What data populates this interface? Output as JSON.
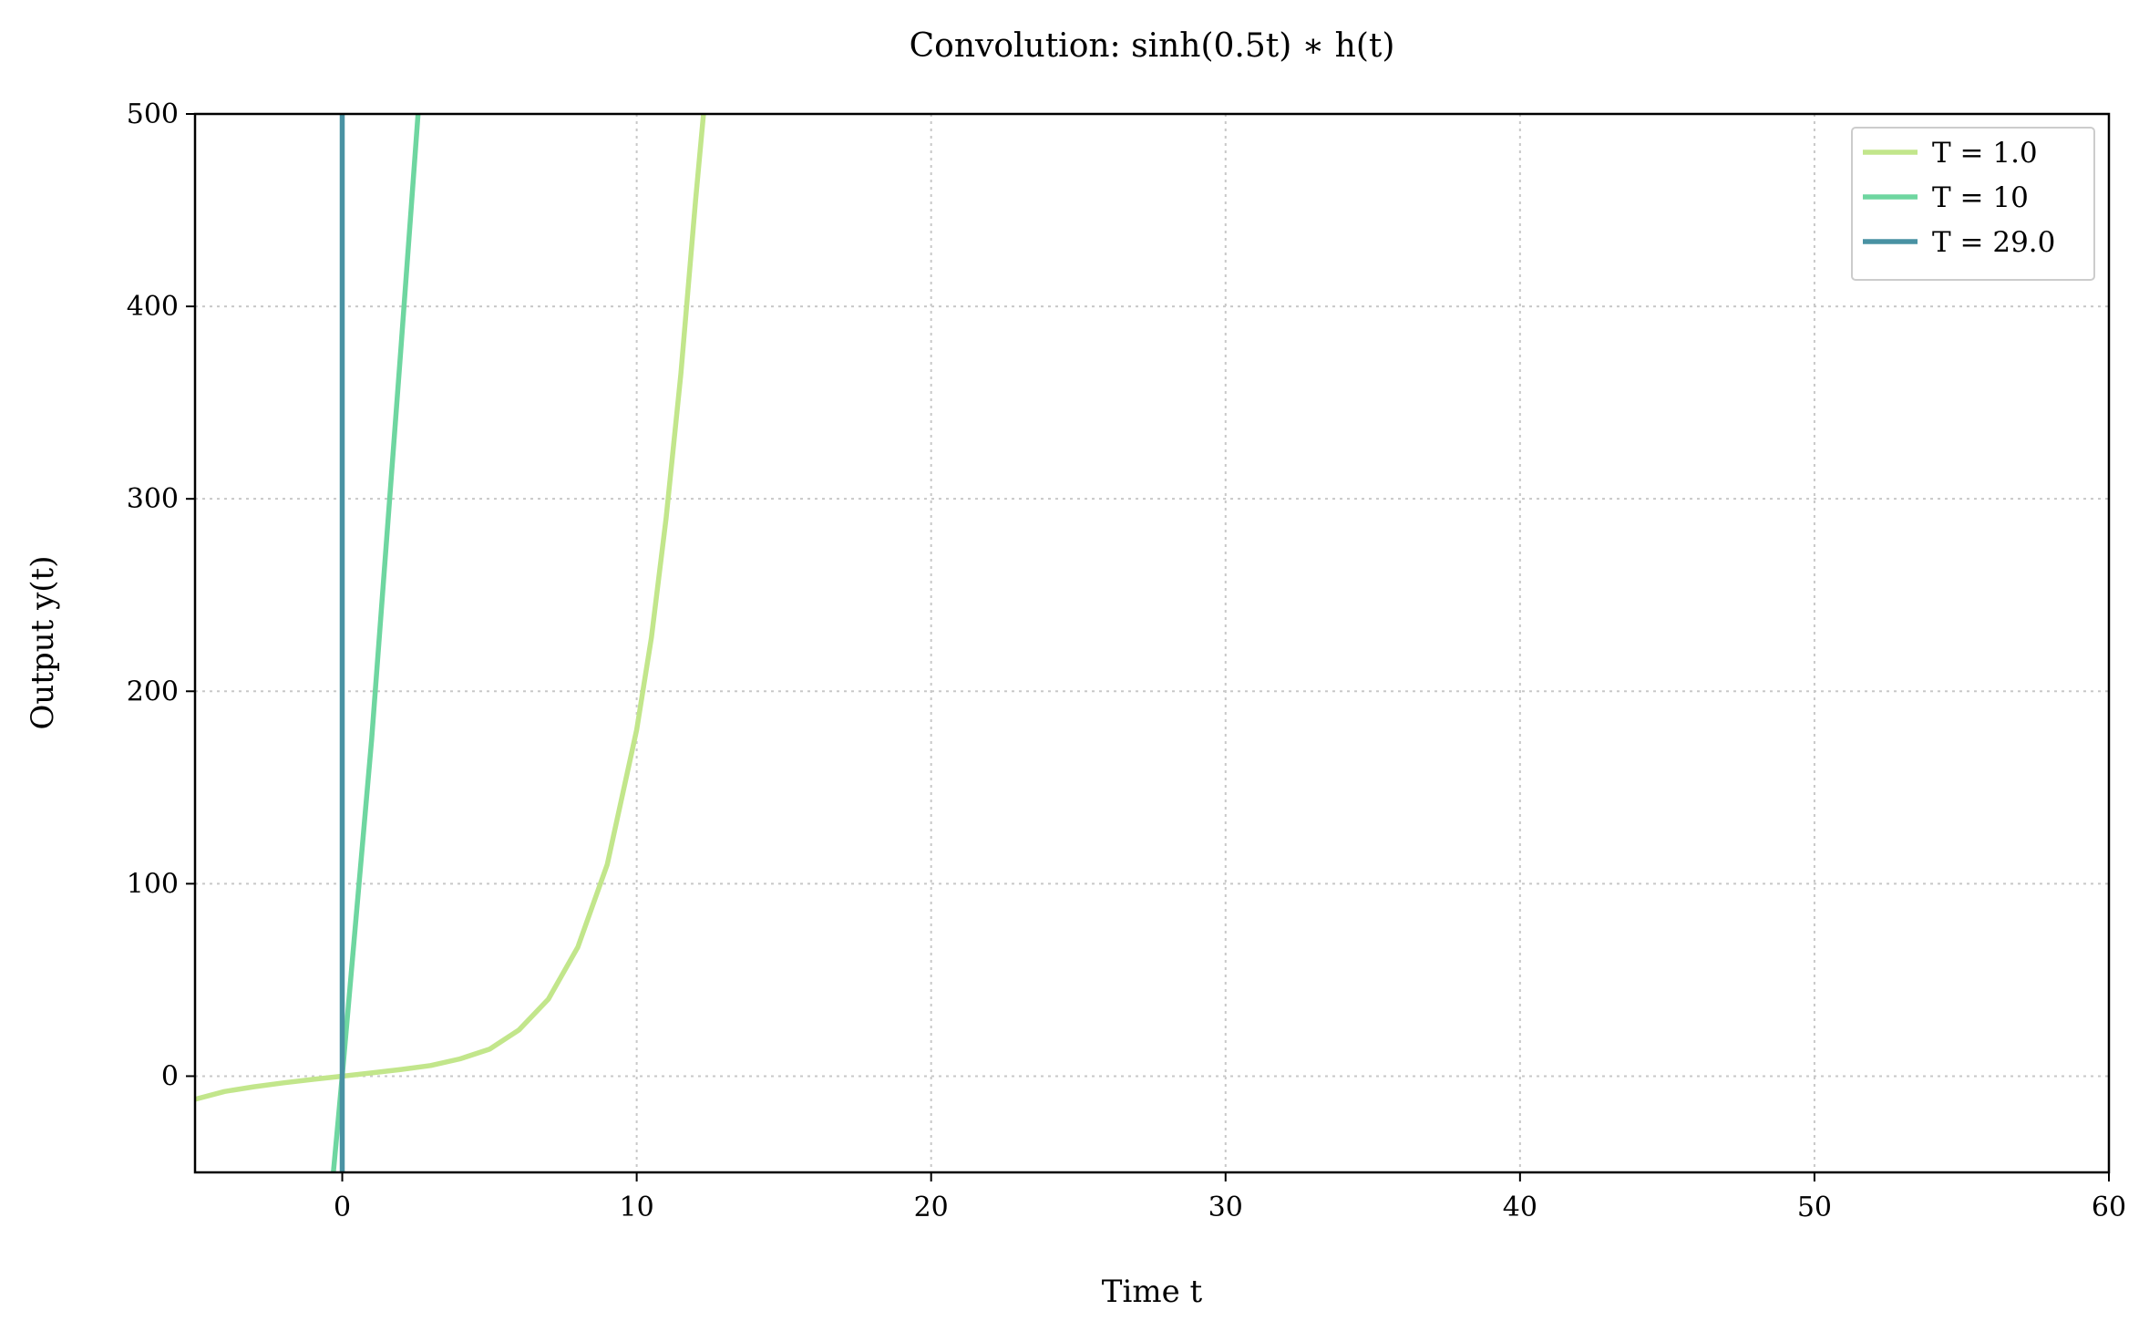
{
  "chart_data": {
    "type": "line",
    "title": "Convolution: sinh(0.5t) ∗ h(t)",
    "xlabel": "Time t",
    "ylabel": "Output y(t)",
    "xlim": [
      -5,
      60
    ],
    "ylim": [
      -50,
      500
    ],
    "xticks": [
      0,
      10,
      20,
      30,
      40,
      50,
      60
    ],
    "yticks": [
      0,
      100,
      200,
      300,
      400,
      500
    ],
    "grid": true,
    "legend_position": "top-right",
    "series": [
      {
        "name": "T = 1.0",
        "color": "#c2e68b",
        "x": [
          -5,
          -4,
          -3,
          -2,
          -1,
          0,
          1,
          2,
          3,
          4,
          5,
          6,
          7,
          8,
          9,
          10,
          10.5,
          11,
          11.5,
          12,
          12.3
        ],
        "y": [
          -12,
          -8,
          -5.5,
          -3.5,
          -1.7,
          0,
          1.7,
          3.5,
          5.5,
          9,
          14,
          24,
          40,
          67,
          110,
          180,
          228,
          290,
          365,
          455,
          505
        ]
      },
      {
        "name": "T = 10",
        "color": "#6ed6a0",
        "x": [
          -0.3,
          0,
          1,
          2,
          2.6
        ],
        "y": [
          -50,
          0,
          175,
          380,
          505
        ]
      },
      {
        "name": "T = 29.0",
        "color": "#4992a3",
        "x": [
          0,
          0
        ],
        "y": [
          -50,
          505
        ]
      }
    ]
  }
}
